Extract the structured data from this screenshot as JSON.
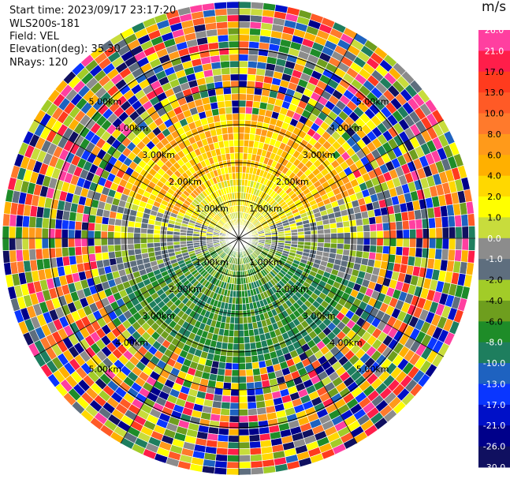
{
  "info": {
    "start_time": "Start time: 2023/09/17 23:17:20",
    "instrument": "WLS200s-181",
    "field": "Field: VEL",
    "elevation": "Elevation(deg): 35.30",
    "nrays": "NRays: 120"
  },
  "colorbar": {
    "unit": "m/s",
    "ticks": [
      "26.0",
      "21.0",
      "17.0",
      "13.0",
      "10.0",
      "8.0",
      "6.0",
      "4.0",
      "2.0",
      "1.0",
      "0.0",
      "-1.0",
      "-2.0",
      "-4.0",
      "-6.0",
      "-8.0",
      "-10.0",
      "-13.0",
      "-17.0",
      "-21.0",
      "-26.0",
      "-30.0"
    ],
    "colors": [
      "#ff3fa0",
      "#ff1e4a",
      "#ff3b1e",
      "#ff5a26",
      "#ff7a2c",
      "#ff9a1a",
      "#ffb000",
      "#ffd800",
      "#ffff00",
      "#c8dc3c",
      "#8c8c8c",
      "#5e6e7e",
      "#a2cc28",
      "#6e9e1e",
      "#1e8c28",
      "#1e7e5e",
      "#1e62c0",
      "#0a36ff",
      "#0010c8",
      "#00008a",
      "#101060"
    ]
  },
  "range_labels": [
    "1.00km",
    "2.00km",
    "3.00km",
    "4.00km",
    "5.00km"
  ],
  "ppi": {
    "max_range_km": 5.0,
    "rings_km": [
      1,
      2,
      3,
      4,
      5
    ],
    "spokes_deg": [
      0,
      30,
      60,
      90,
      120,
      150,
      180,
      210,
      240,
      270,
      300,
      330
    ]
  }
}
